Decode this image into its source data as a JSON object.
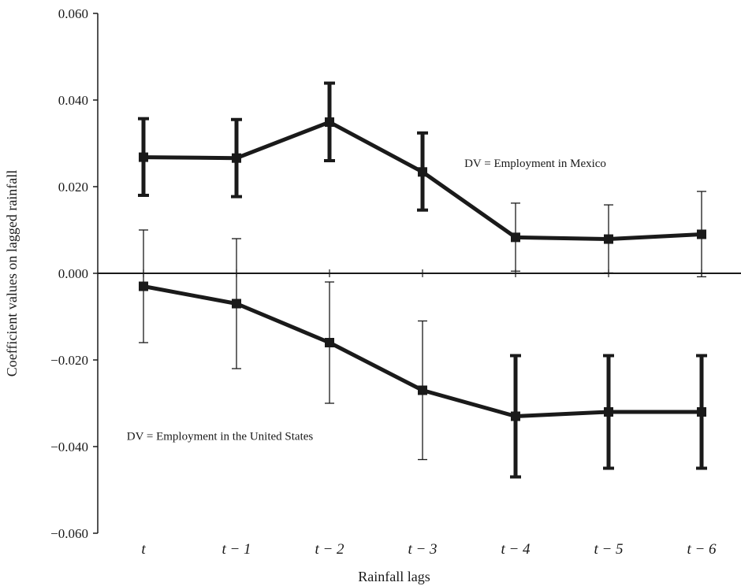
{
  "chart_data": {
    "type": "line",
    "title": "",
    "xlabel": "Rainfall lags",
    "ylabel": "Coefficient values on lagged rainfall",
    "categories": [
      "t",
      "t − 1",
      "t − 2",
      "t − 3",
      "t − 4",
      "t − 5",
      "t − 6"
    ],
    "ylim": [
      -0.06,
      0.06
    ],
    "yticks": [
      0.06,
      0.04,
      0.02,
      0.0,
      -0.02,
      -0.04,
      -0.06
    ],
    "ytick_labels": [
      "0.060",
      "0.040",
      "0.020",
      "0.000",
      "−0.020",
      "−0.040",
      "−0.060"
    ],
    "grid": false,
    "legend": "none",
    "series": [
      {
        "values": [
          0.0268,
          0.0266,
          0.0349,
          0.0234,
          0.0083,
          0.0079,
          0.009
        ],
        "lower": [
          0.018,
          0.0177,
          0.026,
          0.0146,
          0.0005,
          0.0001,
          -0.0008
        ],
        "upper": [
          0.0357,
          0.0355,
          0.0439,
          0.0324,
          0.0162,
          0.0158,
          0.0189
        ],
        "bold_error_bars": [
          true,
          true,
          true,
          true,
          false,
          false,
          false
        ],
        "color": "#1a1a1a"
      },
      {
        "values": [
          -0.003,
          -0.007,
          -0.016,
          -0.027,
          -0.033,
          -0.032,
          -0.032
        ],
        "lower": [
          -0.016,
          -0.022,
          -0.03,
          -0.043,
          -0.047,
          -0.045,
          -0.045
        ],
        "upper": [
          0.01,
          0.008,
          -0.002,
          -0.011,
          -0.019,
          -0.019,
          -0.019
        ],
        "bold_error_bars": [
          false,
          false,
          false,
          false,
          true,
          true,
          true
        ],
        "color": "#1a1a1a"
      }
    ],
    "annotations": [
      {
        "text": "DV = Employment in Mexico",
        "x_cat": 3.45,
        "y": 0.0255
      },
      {
        "text": "DV = Employment in the United States",
        "x_cat": -0.18,
        "y": -0.0375
      }
    ]
  }
}
